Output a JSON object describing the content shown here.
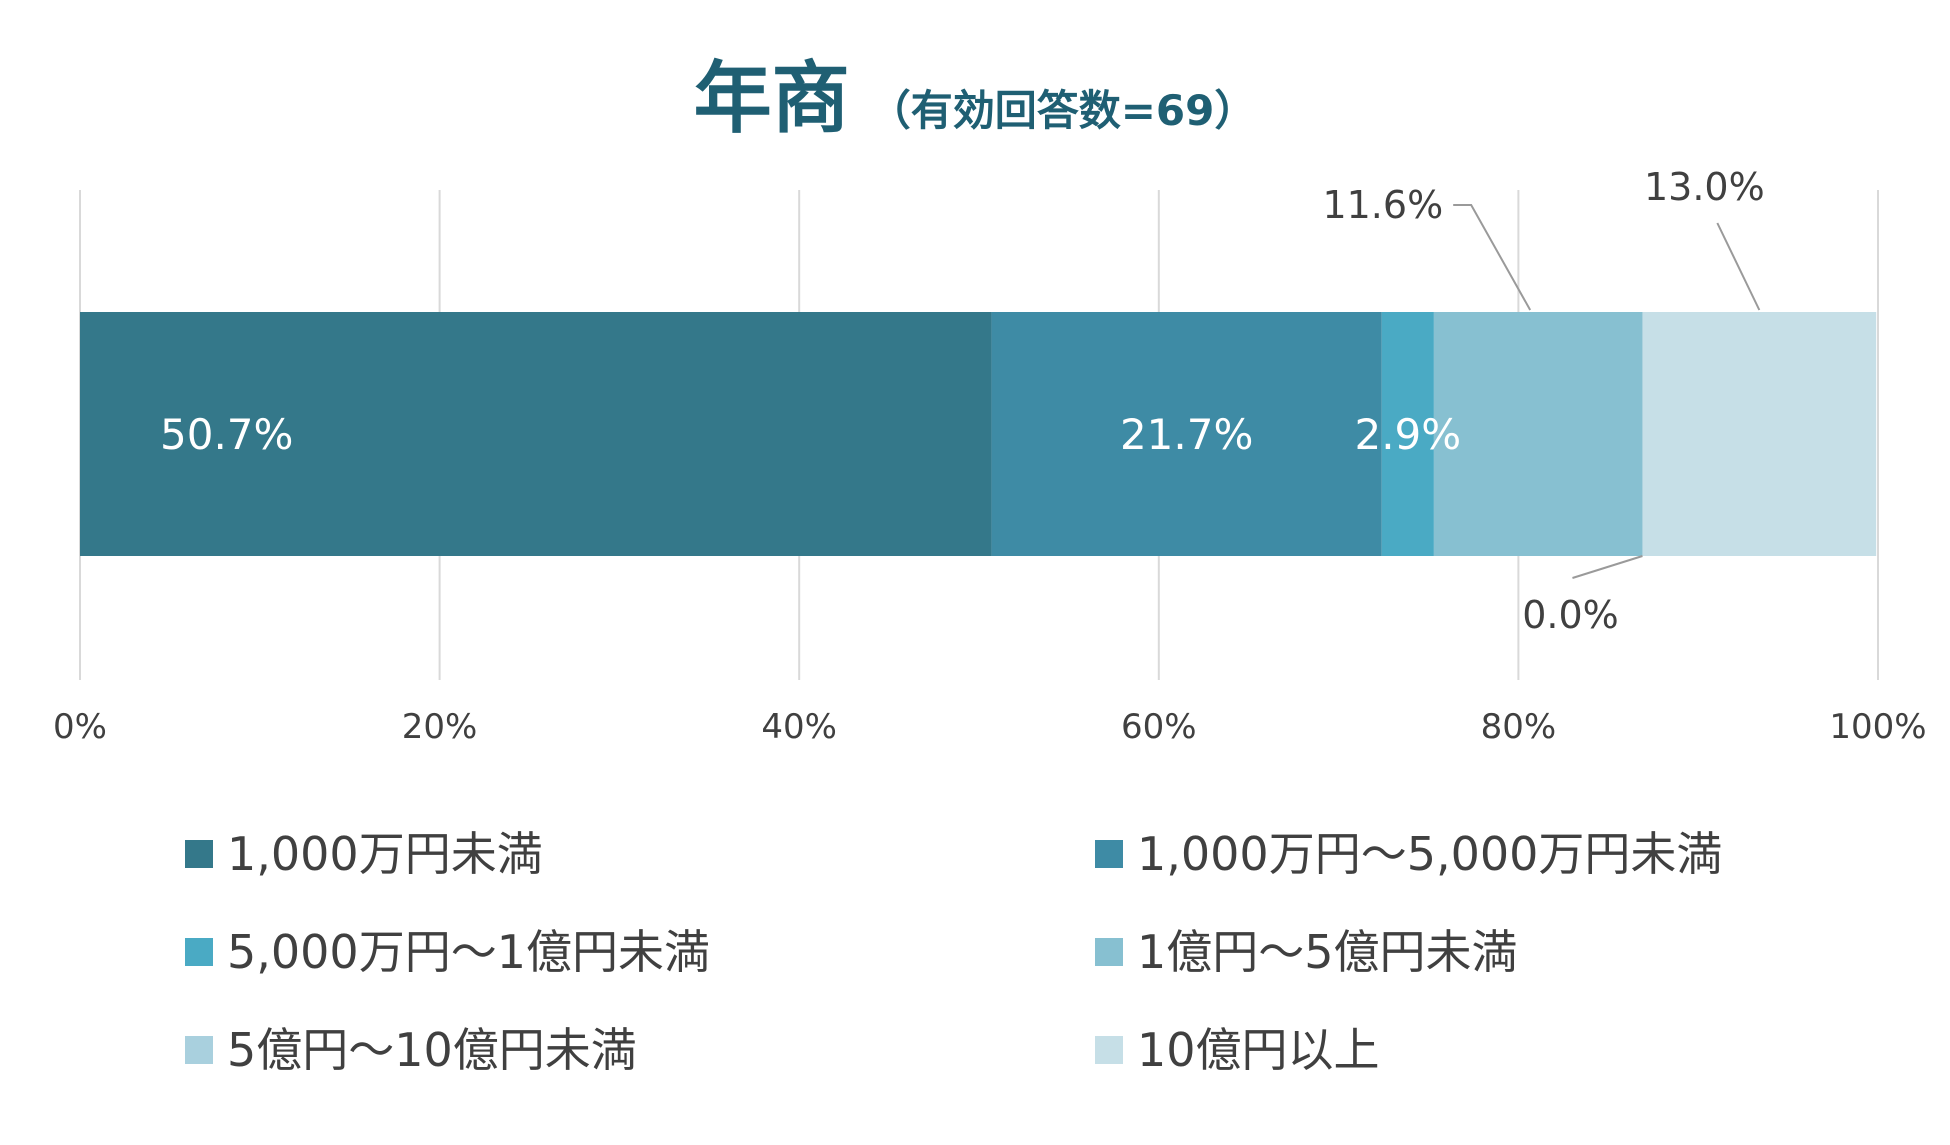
{
  "chart_data": {
    "type": "bar",
    "orientation": "horizontal",
    "stacked": true,
    "title": "年商",
    "subtitle": "（有効回答数=69）",
    "xlim": [
      0,
      100
    ],
    "x_ticks": [
      "0%",
      "20%",
      "40%",
      "60%",
      "80%",
      "100%"
    ],
    "grid": true,
    "legend_position": "bottom",
    "series": [
      {
        "name": "1,000万円未満",
        "value": 50.7,
        "label": "50.7%",
        "color": "#34788a"
      },
      {
        "name": "1,000万円〜5,000万円未満",
        "value": 21.7,
        "label": "21.7%",
        "color": "#3e8ba5"
      },
      {
        "name": "5,000万円〜1億円未満",
        "value": 2.9,
        "label": "2.9%",
        "color": "#4aaac4"
      },
      {
        "name": "1億円〜5億円未満",
        "value": 11.6,
        "label": "11.6%",
        "color": "#87c0d1"
      },
      {
        "name": "5億円〜10億円未満",
        "value": 0.0,
        "label": "0.0%",
        "color": "#a9d0de"
      },
      {
        "name": "10億円以上",
        "value": 13.0,
        "label": "13.0%",
        "color": "#c6dfe7"
      }
    ]
  }
}
